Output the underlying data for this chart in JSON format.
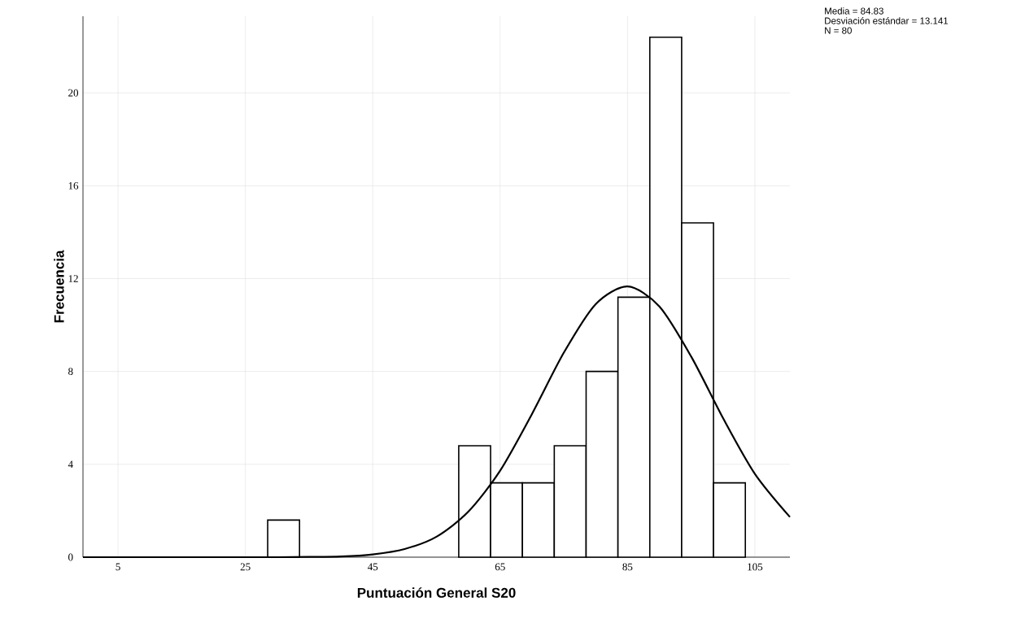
{
  "chart_data": {
    "type": "histogram",
    "xlabel": "Puntuación General S20",
    "ylabel": "Frecuencia",
    "annotations": [
      "Media = 84.83",
      "Desviación estándar = 13.141",
      "N = 80"
    ],
    "bins": [
      28.5,
      33.5,
      38.5,
      43.5,
      48.5,
      53.5,
      58.5,
      63.5,
      68.5,
      73.5,
      78.5,
      83.5,
      88.5,
      93.5,
      98.5,
      103.5
    ],
    "values": [
      1.6,
      0,
      0,
      0,
      0,
      0,
      4.8,
      3.2,
      3.2,
      4.8,
      8,
      11.2,
      22.4,
      14.4,
      3.2
    ],
    "color": "#ffffff",
    "series": [
      {
        "type": "line",
        "color": "#000000",
        "x": [
          -0.5,
          20,
          30,
          35,
          40,
          45,
          50,
          55,
          60,
          65,
          70,
          75,
          80,
          85,
          90,
          95,
          100,
          105,
          110.5
        ],
        "values": [
          0,
          0,
          0,
          0.01,
          0.03,
          0.12,
          0.35,
          0.88,
          1.96,
          3.73,
          6.17,
          8.81,
          10.9,
          11.66,
          10.8,
          8.64,
          5.99,
          3.59,
          1.73
        ]
      }
    ],
    "xlim": [
      -0.5,
      110.5
    ],
    "ylim": [
      0,
      23.3
    ],
    "xticks": [
      5,
      25,
      45,
      65,
      85,
      105
    ],
    "yticks": [
      0,
      4,
      8,
      12,
      16,
      20
    ],
    "grid": true
  }
}
